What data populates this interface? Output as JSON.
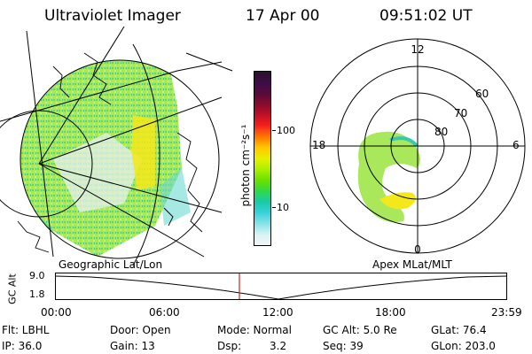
{
  "header": {
    "instrument": "Ultraviolet Imager",
    "date": "17 Apr 00",
    "time": "09:51:02 UT"
  },
  "colorbar": {
    "unit_label": "photon cm⁻²s⁻¹",
    "ticks": [
      "100",
      "10"
    ],
    "colors": [
      "#2b0f2a",
      "#3a0d4a",
      "#5a0a3a",
      "#8a0c2a",
      "#c0102a",
      "#f4201e",
      "#ff7f00",
      "#ffc800",
      "#e8f000",
      "#aef000",
      "#66e000",
      "#2fd94c",
      "#19c9a8",
      "#35d1d8",
      "#8ce4e8",
      "#d8f4f4",
      "#f4f4f4"
    ]
  },
  "polar": {
    "mlt_labels": [
      "12",
      "18",
      "6",
      "0"
    ],
    "lat_labels": [
      "60",
      "70",
      "80"
    ]
  },
  "timeline": {
    "left_label": "Geographic Lat/Lon",
    "right_label": "Apex MLat/MLT",
    "y_axis_label": "GC Alt",
    "y_ticks": [
      "9.0",
      "1.8"
    ],
    "time_ticks": [
      "00:00",
      "06:00",
      "12:00",
      "18:00",
      "23:59"
    ],
    "marker_color": "#d02020"
  },
  "footer": {
    "row1": {
      "flt": "Flt: LBHL",
      "door": "Door: Open",
      "mode": "Mode: Normal",
      "gcalt": "GC Alt: 5.0 Re",
      "glat": "GLat: 76.4"
    },
    "row2": {
      "ip": "IP: 36.0",
      "gain": "Gain: 13",
      "dsp_label": "Dsp:",
      "dsp_value": "3.2",
      "seq": "Seq: 39",
      "glon": "GLon: 203.0"
    }
  }
}
